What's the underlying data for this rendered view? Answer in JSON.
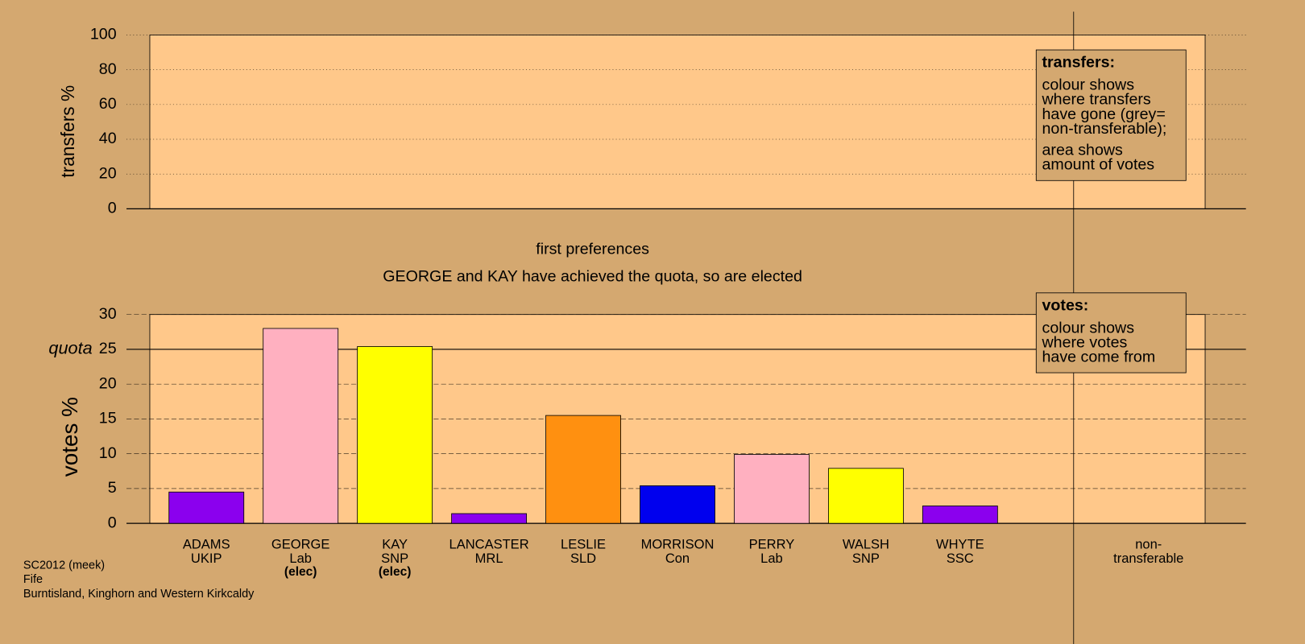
{
  "chart_data": [
    {
      "type": "bar",
      "ylabel": "transfers %",
      "ylim": [
        0,
        100
      ],
      "yticks": [
        0,
        20,
        40,
        60,
        80,
        100
      ],
      "grid": true,
      "grid_style": "dotted",
      "note": {
        "title": "transfers:",
        "lines": [
          "colour shows",
          "where transfers",
          "have gone (grey=",
          "non-transferable);",
          "area shows",
          "amount of votes"
        ]
      }
    },
    {
      "type": "bar",
      "title": "first preferences",
      "subtitle": "GEORGE and KAY have achieved the quota, so are elected",
      "ylabel": "votes %",
      "ylim": [
        0,
        30
      ],
      "yticks": [
        0,
        5,
        10,
        15,
        20,
        25,
        30
      ],
      "grid": true,
      "grid_style": "dashed",
      "quota": {
        "label": "quota",
        "value": 25
      },
      "categories": [
        "ADAMS",
        "GEORGE",
        "KAY",
        "LANCASTER",
        "LESLIE",
        "MORRISON",
        "PERRY",
        "WALSH",
        "WHYTE"
      ],
      "parties": [
        "UKIP",
        "Lab",
        "SNP",
        "MRL",
        "SLD",
        "Con",
        "Lab",
        "SNP",
        "SSC"
      ],
      "status": [
        null,
        "(elec)",
        "(elec)",
        null,
        null,
        null,
        null,
        null,
        null
      ],
      "values": [
        4.5,
        28.0,
        25.4,
        1.4,
        15.5,
        5.4,
        9.9,
        7.9,
        2.5
      ],
      "colors": [
        "#8b00ee",
        "#ffb0c0",
        "#ffff00",
        "#8b00ee",
        "#ff9010",
        "#0000ee",
        "#ffb0c0",
        "#ffff00",
        "#8b00ee"
      ],
      "nontransferable_label": [
        "non-",
        "transferable"
      ],
      "note": {
        "title": "votes:",
        "lines": [
          "colour shows",
          "where votes",
          "have come from"
        ]
      }
    }
  ],
  "footer": [
    "SC2012 (meek)",
    "Fife",
    "Burntisland, Kinghorn and Western Kirkcaldy"
  ]
}
